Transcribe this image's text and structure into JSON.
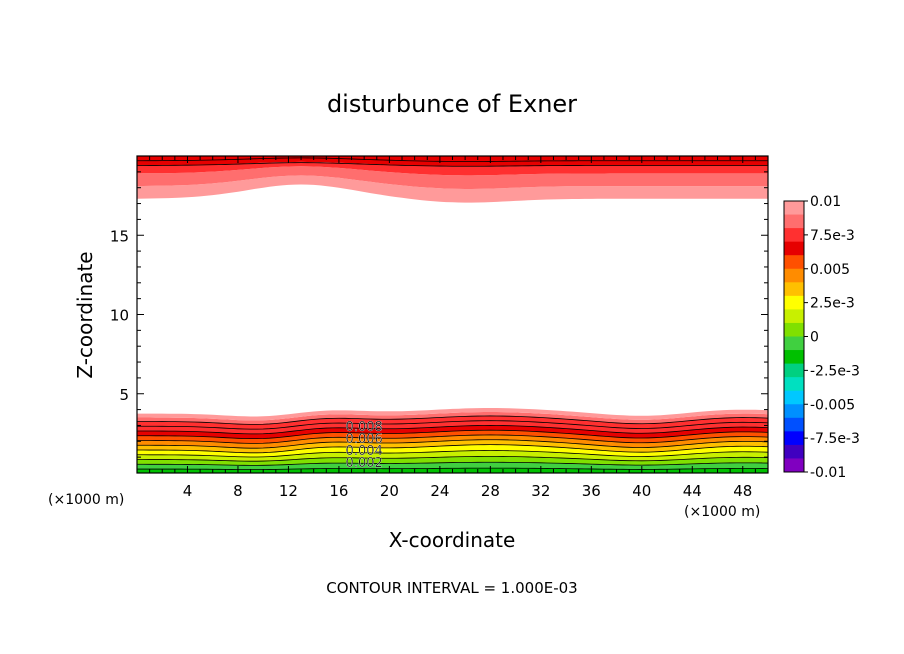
{
  "chart_data": {
    "type": "heatmap",
    "title": "disturbunce of Exner",
    "xlabel": "X-coordinate",
    "ylabel": "Z-coordinate",
    "x_unit": "(×1000 m)",
    "y_unit": "(×1000 m)",
    "xlim": [
      0,
      50
    ],
    "ylim": [
      0,
      20
    ],
    "x_ticks": [
      4,
      8,
      12,
      16,
      20,
      24,
      28,
      32,
      36,
      40,
      44,
      48
    ],
    "y_ticks": [
      5,
      10,
      15
    ],
    "colorbar": {
      "min": -0.01,
      "max": 0.01,
      "labels": [
        "0.01",
        "7.5e-3",
        "0.005",
        "2.5e-3",
        "0",
        "-2.5e-3",
        "-0.005",
        "-7.5e-3",
        "-0.01"
      ],
      "colors": [
        "#ff9a9a",
        "#ff6e6e",
        "#ff3030",
        "#e60000",
        "#ff5000",
        "#ff8c00",
        "#ffc000",
        "#ffff00",
        "#c8f000",
        "#80e000",
        "#40d040",
        "#00c000",
        "#00d080",
        "#00e0c0",
        "#00c8ff",
        "#0090ff",
        "#0050ff",
        "#0000ff",
        "#4000c0",
        "#8000c0"
      ]
    },
    "contour_labels": [
      {
        "text": "0.008",
        "x": 18,
        "z": 2.95
      },
      {
        "text": "0.006",
        "x": 18,
        "z": 2.2
      },
      {
        "text": "0.004",
        "x": 18,
        "z": 1.45
      },
      {
        "text": "0.002",
        "x": 18,
        "z": 0.7
      }
    ],
    "footer": "CONTOUR INTERVAL = 1.000E-03"
  }
}
